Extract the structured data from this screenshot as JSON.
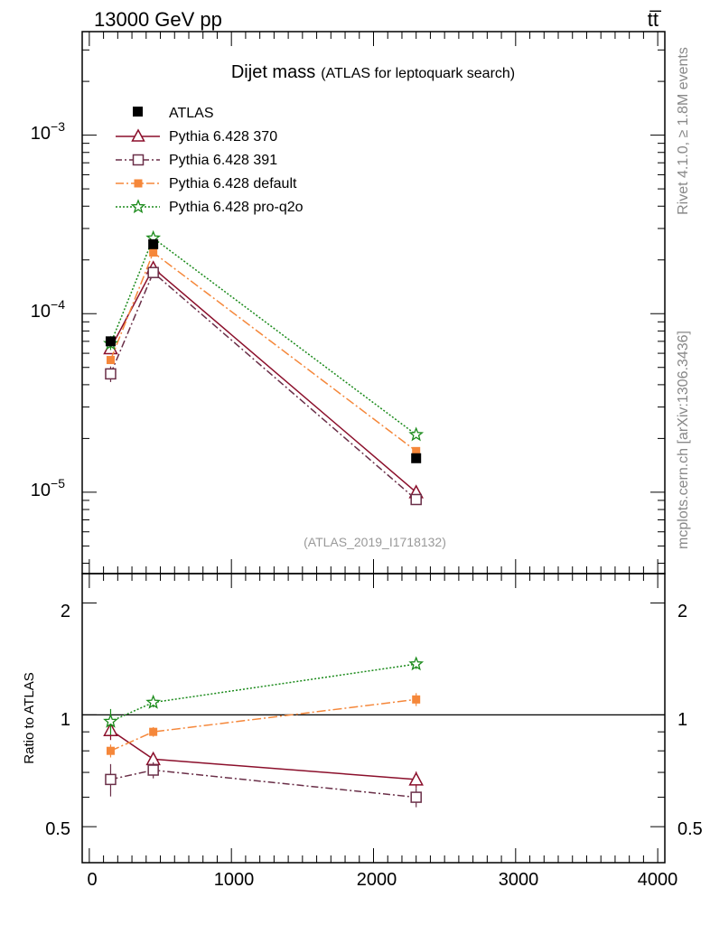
{
  "header": {
    "energy": "13000 GeV pp",
    "process": "tt̅"
  },
  "side_labels": {
    "rivet": "Rivet 4.1.0, ≥ 1.8M events",
    "source": "mcplots.cern.ch [arXiv:1306.3436]"
  },
  "chart_data": {
    "type": "line",
    "title": "Dijet mass",
    "subtitle": "(ATLAS for leptoquark search)",
    "analysis_id": "(ATLAS_2019_I1718132)",
    "xlabel": "",
    "ylabel": "",
    "ratio_ylabel": "Ratio to ATLAS",
    "xlim": [
      -50,
      4050
    ],
    "ylim": [
      3.5e-06,
      0.0038
    ],
    "ratio_ylim": [
      0.4,
      2.4
    ],
    "x": [
      150,
      450,
      2300
    ],
    "x_ticks": [
      "0",
      "1000",
      "2000",
      "3000",
      "4000"
    ],
    "y_ticks": [
      "10",
      "10",
      "10"
    ],
    "y_tick_exponents": [
      "−3",
      "−4",
      "−5"
    ],
    "ratio_ticks": [
      "0.5",
      "1",
      "2"
    ],
    "data": {
      "name": "ATLAS",
      "values": [
        7e-05,
        0.000245,
        1.55e-05
      ]
    },
    "series": [
      {
        "name": "Pythia 6.428 370",
        "color": "#8b0f2b",
        "dash": "solid",
        "marker": "triangle-open",
        "values": [
          6.4e-05,
          0.00018,
          1e-05
        ],
        "errors": [
          0.06,
          0.04,
          0.05
        ],
        "ratio": [
          0.91,
          0.76,
          0.67
        ],
        "ratio_errors": [
          0.06,
          0.04,
          0.05
        ]
      },
      {
        "name": "Pythia 6.428 391",
        "color": "#6a2f48",
        "dash": "dashdot",
        "marker": "square-open",
        "values": [
          4.6e-05,
          0.00017,
          9.1e-06
        ],
        "errors": [
          0.1,
          0.05,
          0.06
        ],
        "ratio": [
          0.67,
          0.71,
          0.6
        ],
        "ratio_errors": [
          0.1,
          0.05,
          0.06
        ]
      },
      {
        "name": "Pythia 6.428 default",
        "color": "#f5873a",
        "dash": "dashdot2",
        "marker": "square-filled",
        "values": [
          5.5e-05,
          0.00022,
          1.7e-05
        ],
        "errors": [
          0.04,
          0.03,
          0.04
        ],
        "ratio": [
          0.8,
          0.9,
          1.1
        ],
        "ratio_errors": [
          0.04,
          0.03,
          0.04
        ]
      },
      {
        "name": "Pythia 6.428 pro-q2o",
        "color": "#1a8a1a",
        "dash": "dotted",
        "marker": "star-open",
        "values": [
          6.8e-05,
          0.000265,
          2.1e-05
        ],
        "errors": [
          0.08,
          0.03,
          0.03
        ],
        "ratio": [
          0.96,
          1.08,
          1.37
        ],
        "ratio_errors": [
          0.08,
          0.03,
          0.03
        ]
      }
    ]
  }
}
